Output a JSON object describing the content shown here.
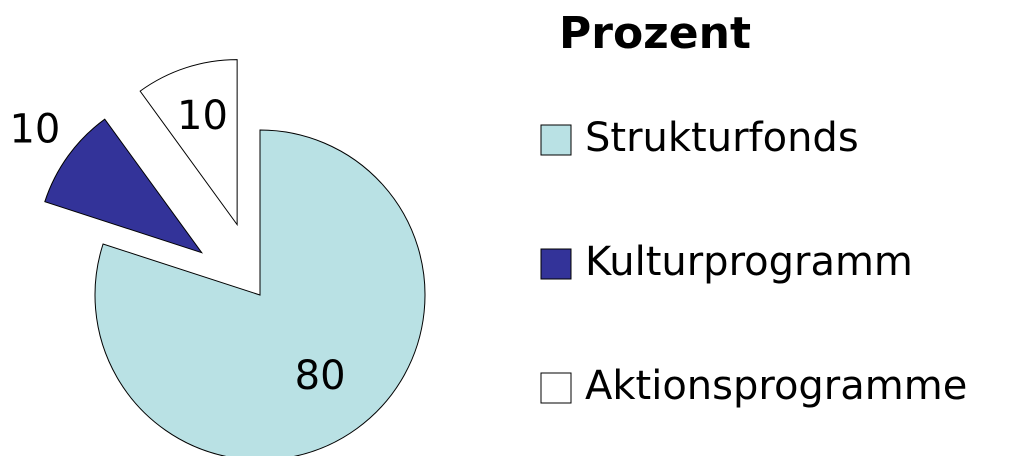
{
  "chart_data": {
    "type": "pie",
    "title": "Prozent",
    "categories": [
      "Strukturfonds",
      "Kulturprogramm",
      "Aktionsprogramme"
    ],
    "values": [
      80,
      10,
      10
    ],
    "colors": [
      "#b9e1e4",
      "#333399",
      "#ffffff"
    ]
  }
}
